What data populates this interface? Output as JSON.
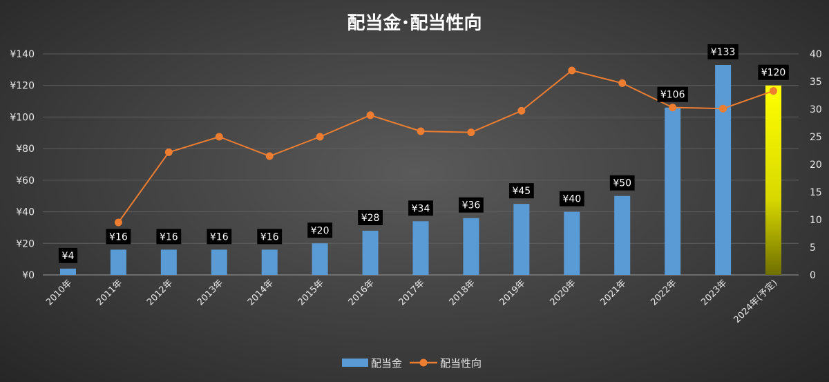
{
  "chart_data": {
    "type": "bar",
    "title": "配当金･配当性向",
    "categories": [
      "2010年",
      "2011年",
      "2012年",
      "2013年",
      "2014年",
      "2015年",
      "2016年",
      "2017年",
      "2018年",
      "2019年",
      "2020年",
      "2021年",
      "2022年",
      "2023年",
      "2024年(予定)"
    ],
    "series": [
      {
        "name": "配当金",
        "type": "bar",
        "axis": "left",
        "values": [
          4,
          16,
          16,
          16,
          16,
          20,
          28,
          34,
          36,
          45,
          40,
          50,
          106,
          133,
          120
        ],
        "data_labels": [
          "¥4",
          "¥16",
          "¥16",
          "¥16",
          "¥16",
          "¥20",
          "¥28",
          "¥34",
          "¥36",
          "¥45",
          "¥40",
          "¥50",
          "¥106",
          "¥133",
          "¥120"
        ],
        "color": "#5b9bd5",
        "highlight_last_color": "#ffff00"
      },
      {
        "name": "配当性向",
        "type": "line",
        "axis": "right",
        "values": [
          null,
          9.5,
          22.2,
          25,
          21.5,
          25,
          28.9,
          26,
          25.8,
          29.7,
          37,
          34.7,
          30.3,
          30.1,
          33.3
        ],
        "color": "#ed7d31"
      }
    ],
    "y_left": {
      "min": 0,
      "max": 140,
      "step": 20,
      "tick_labels": [
        "¥0",
        "¥20",
        "¥40",
        "¥60",
        "¥80",
        "¥100",
        "¥120",
        "¥140"
      ]
    },
    "y_right": {
      "min": 0,
      "max": 40,
      "step": 5,
      "tick_labels": [
        "0",
        "5",
        "10",
        "15",
        "20",
        "25",
        "30",
        "35",
        "40"
      ]
    },
    "grid": true,
    "legend_position": "bottom"
  }
}
